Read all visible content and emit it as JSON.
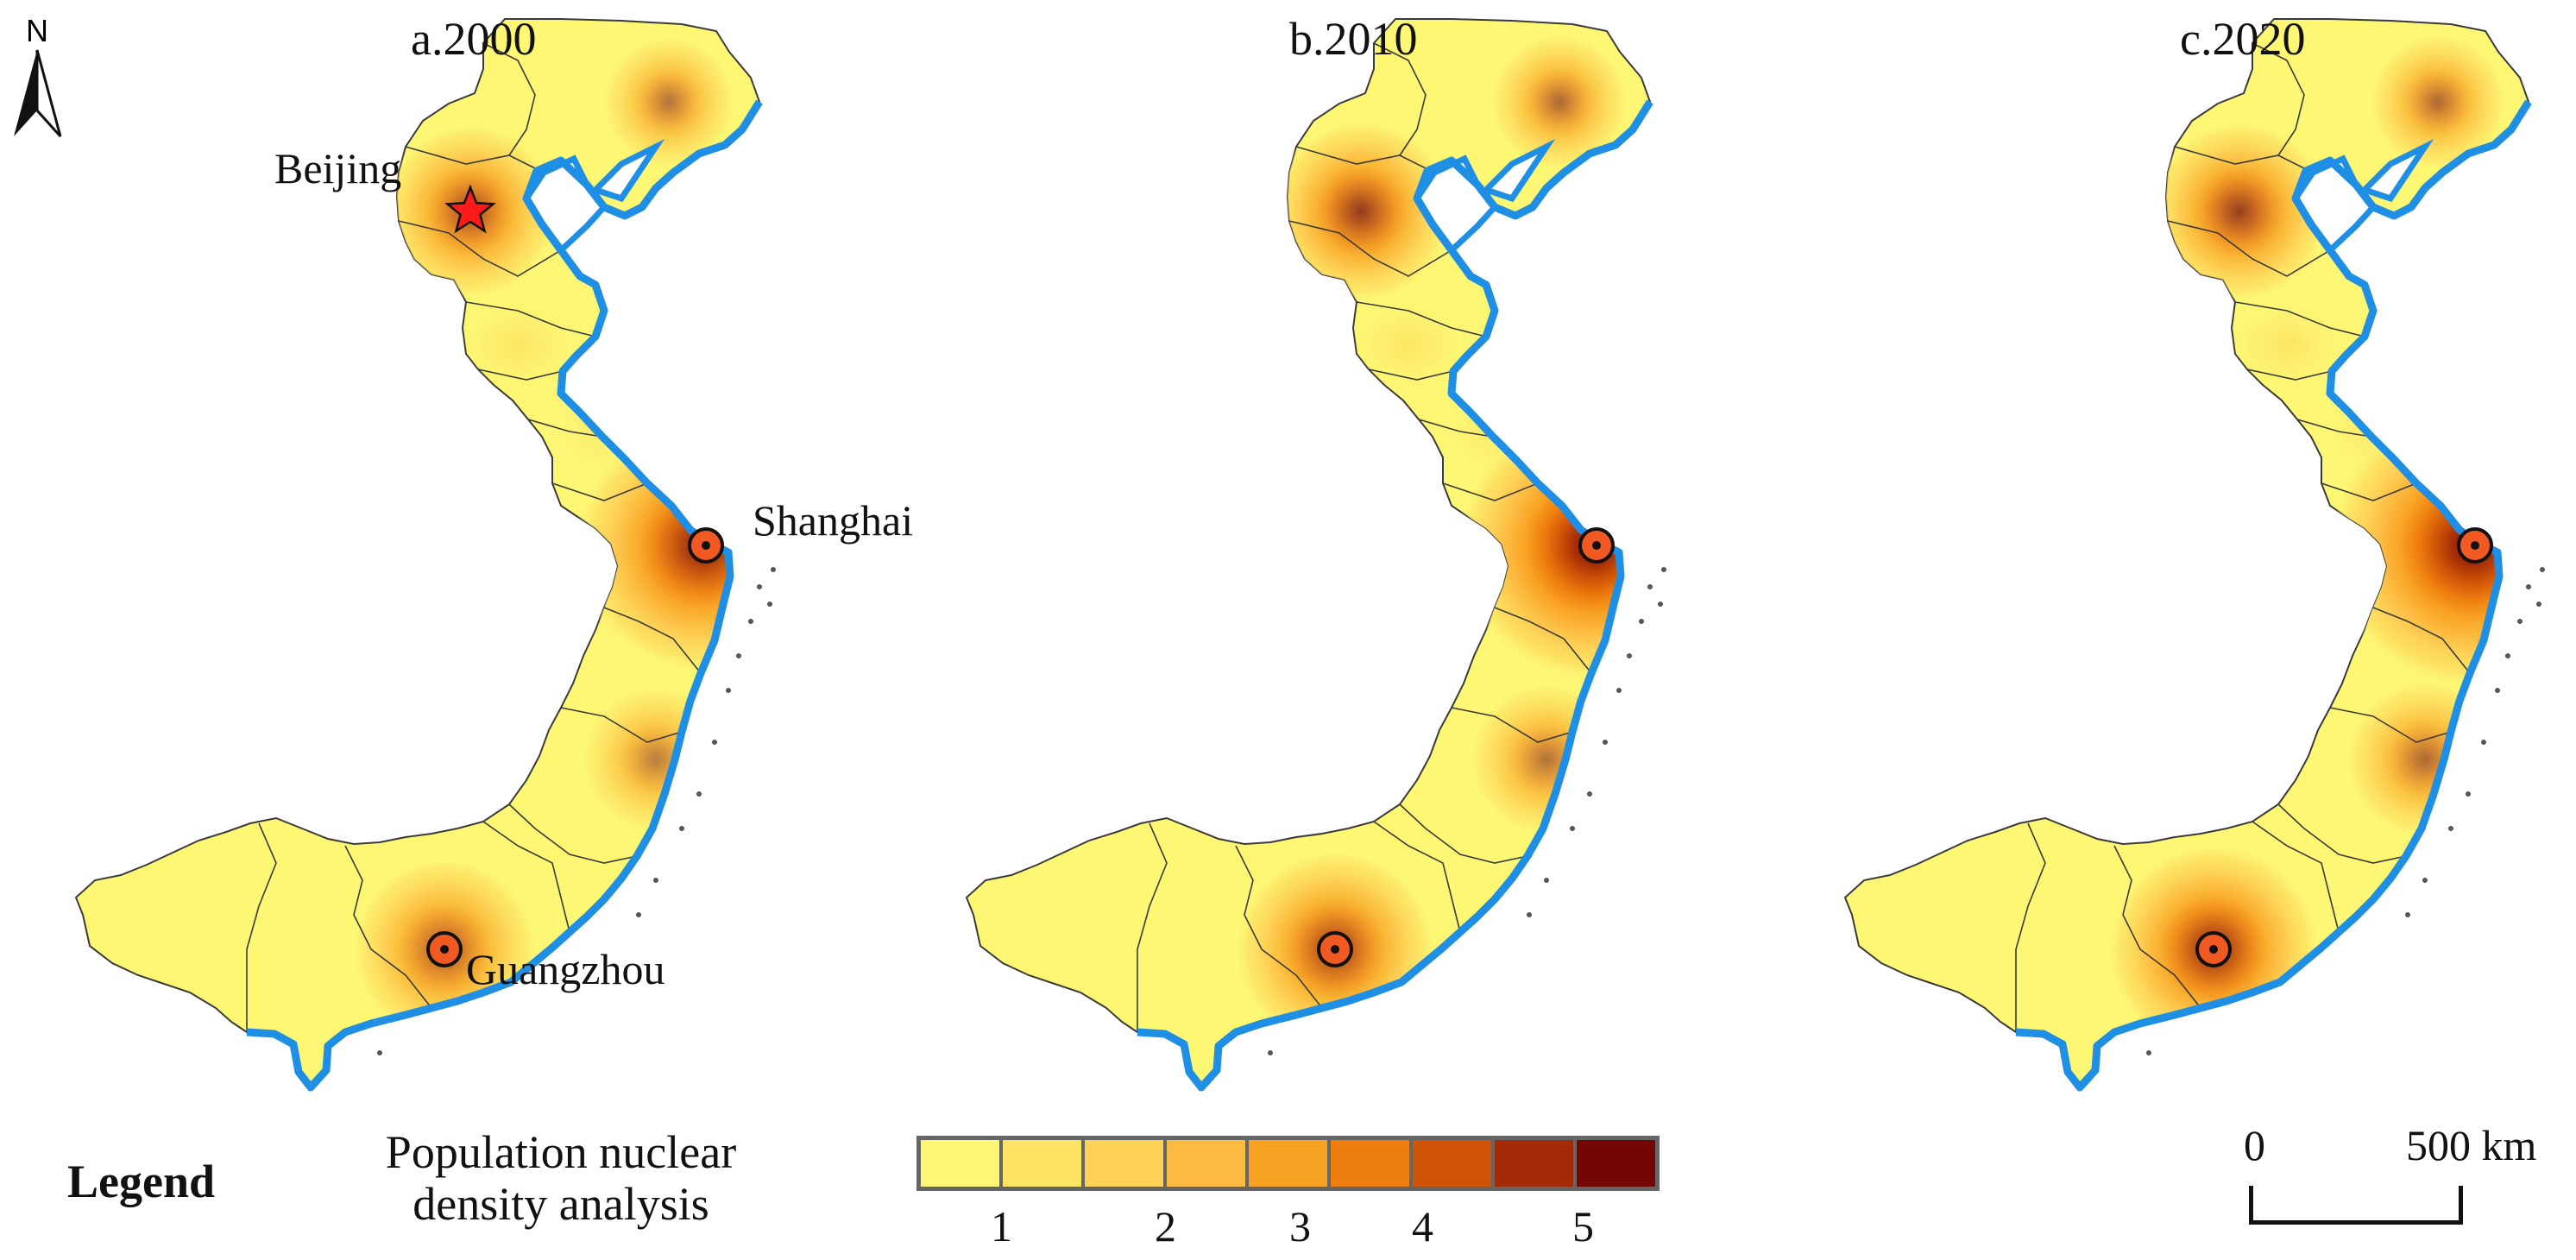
{
  "north_arrow": {
    "label": "N"
  },
  "panels": [
    {
      "id": "a",
      "title": "a.2000",
      "intensity": {
        "beijing": 0.55,
        "shanghai": 0.78,
        "guangzhou": 0.5,
        "north": 0.35,
        "south_coast": 0.3
      }
    },
    {
      "id": "b",
      "title": "b.2010",
      "intensity": {
        "beijing": 0.62,
        "shanghai": 0.9,
        "guangzhou": 0.62,
        "north": 0.4,
        "south_coast": 0.35
      }
    },
    {
      "id": "c",
      "title": "c.2020",
      "intensity": {
        "beijing": 0.6,
        "shanghai": 1.0,
        "guangzhou": 0.72,
        "north": 0.4,
        "south_coast": 0.4
      }
    }
  ],
  "city_labels": {
    "beijing": "Beijing",
    "shanghai": "Shanghai",
    "guangzhou": "Guangzhou"
  },
  "legend": {
    "title": "Legend",
    "description": "Population nuclear density analysis",
    "classes": [
      "#fdf774",
      "#fde465",
      "#fdd257",
      "#fcba40",
      "#f9a323",
      "#ee7e0f",
      "#cf5407",
      "#a22a06",
      "#730605"
    ],
    "tick_labels": [
      "1",
      "2",
      "3",
      "4",
      "5"
    ]
  },
  "scale_bar": {
    "start_label": "0",
    "end_label": "500 km"
  },
  "colors": {
    "coast": "#1e8fe4",
    "land": "#fdf774",
    "border": "#3a3a3a",
    "star": "#ff1a1a",
    "marker": "#f05a22"
  }
}
